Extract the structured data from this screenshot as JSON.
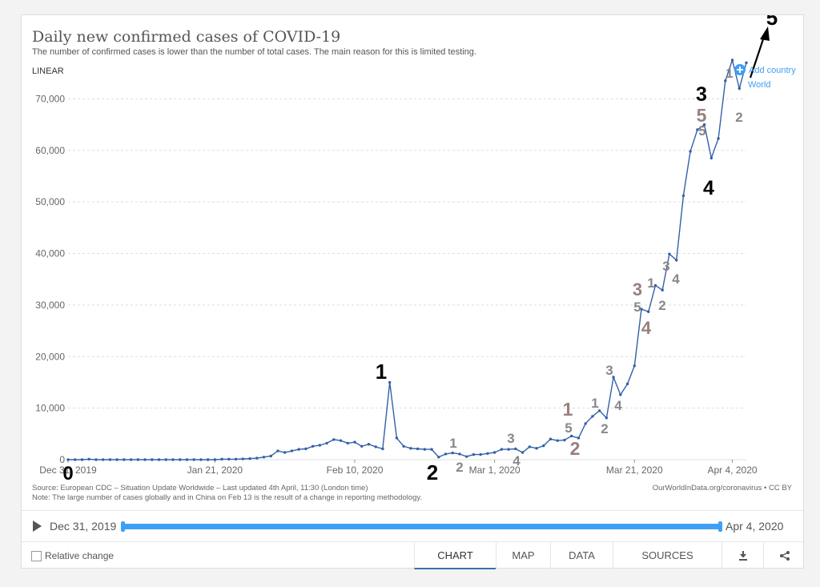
{
  "title": "Daily new confirmed cases of COVID-19",
  "subtitle": "The number of confirmed cases is lower than the number of total cases. The main reason for this is limited testing.",
  "scale_label": "LINEAR",
  "add_country_label": "Add country",
  "source_note": "Source: European CDC – Situation Update Worldwide – Last updated 4th April, 11:30 (London time)",
  "method_note": "Note: The large number of cases globally and in China on Feb 13 is the result of a change in reporting methodology.",
  "credit": "OurWorldInData.org/coronavirus • CC BY",
  "timeline": {
    "start": "Dec 31, 2019",
    "end": "Apr 4, 2020"
  },
  "relative_change_label": "Relative change",
  "tabs": [
    "CHART",
    "MAP",
    "DATA",
    "SOURCES"
  ],
  "colors": {
    "line": "#3360a9",
    "accent": "#3f9ff5",
    "label_dark": "#000000",
    "label_grey": "#888888",
    "label_brown": "#9a7f7f"
  },
  "icons": {
    "play": "play-icon",
    "download": "download-icon",
    "share": "share-icon",
    "add": "plus-circle-icon"
  },
  "chart_data": {
    "type": "line",
    "x_ticks": [
      "Dec 31, 2019",
      "Jan 21, 2020",
      "Feb 10, 2020",
      "Mar 1, 2020",
      "Mar 21, 2020",
      "Apr 4, 2020"
    ],
    "y_ticks": [
      0,
      10000,
      20000,
      30000,
      40000,
      50000,
      60000,
      70000
    ],
    "y_tick_labels": [
      "0",
      "10,000",
      "20,000",
      "30,000",
      "40,000",
      "50,000",
      "60,000",
      "70,000"
    ],
    "ylim": [
      0,
      80000
    ],
    "grid": true,
    "series": [
      {
        "name": "World",
        "values": [
          0,
          0,
          0,
          100,
          0,
          0,
          0,
          0,
          0,
          0,
          0,
          0,
          0,
          0,
          0,
          0,
          0,
          0,
          0,
          0,
          0,
          0,
          100,
          100,
          100,
          150,
          200,
          300,
          500,
          700,
          1700,
          1400,
          1700,
          2000,
          2100,
          2600,
          2800,
          3200,
          3900,
          3700,
          3200,
          3400,
          2600,
          3000,
          2500,
          2100,
          15000,
          4200,
          2600,
          2200,
          2100,
          2000,
          2000,
          500,
          1100,
          1300,
          1100,
          600,
          1000,
          1000,
          1200,
          1400,
          2000,
          2000,
          2100,
          1400,
          2500,
          2200,
          2700,
          4000,
          3700,
          3800,
          4600,
          4200,
          7000,
          8400,
          9500,
          8100,
          16000,
          12600,
          14700,
          18200,
          29200,
          28700,
          33800,
          32900,
          39900,
          38700,
          51200,
          59800,
          64000,
          65000,
          58500,
          62300,
          73500,
          77500,
          72000,
          77000
        ]
      }
    ],
    "annotations": [
      {
        "text": "0",
        "color": "black"
      },
      {
        "text": "1",
        "color": "black"
      },
      {
        "text": "2",
        "color": "black"
      },
      {
        "text": "1",
        "color": "grey"
      },
      {
        "text": "2",
        "color": "grey"
      },
      {
        "text": "3",
        "color": "grey"
      },
      {
        "text": "4",
        "color": "grey"
      },
      {
        "text": "1",
        "color": "brown"
      },
      {
        "text": "5",
        "color": "grey"
      },
      {
        "text": "2",
        "color": "brown"
      },
      {
        "text": "1",
        "color": "grey"
      },
      {
        "text": "2",
        "color": "grey"
      },
      {
        "text": "3",
        "color": "grey"
      },
      {
        "text": "4",
        "color": "grey"
      },
      {
        "text": "3",
        "color": "brown"
      },
      {
        "text": "5",
        "color": "grey"
      },
      {
        "text": "4",
        "color": "brown"
      },
      {
        "text": "1",
        "color": "grey"
      },
      {
        "text": "2",
        "color": "grey"
      },
      {
        "text": "3",
        "color": "grey"
      },
      {
        "text": "4",
        "color": "grey"
      },
      {
        "text": "3",
        "color": "black"
      },
      {
        "text": "5",
        "color": "brown"
      },
      {
        "text": "5",
        "color": "grey"
      },
      {
        "text": "4",
        "color": "black"
      },
      {
        "text": "1",
        "color": "grey"
      },
      {
        "text": "2",
        "color": "grey"
      },
      {
        "text": "5",
        "color": "black"
      }
    ]
  }
}
